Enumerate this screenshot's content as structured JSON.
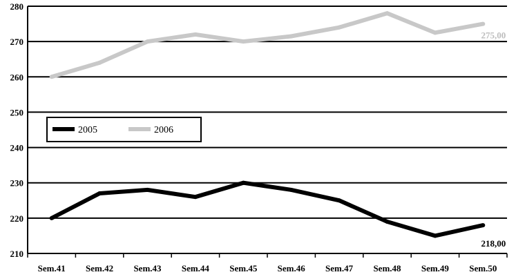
{
  "chart_data": {
    "type": "line",
    "title": "",
    "xlabel": "",
    "ylabel": "",
    "categories": [
      "Sem.41",
      "Sem.42",
      "Sem.43",
      "Sem.44",
      "Sem.45",
      "Sem.46",
      "Sem.47",
      "Sem.48",
      "Sem.49",
      "Sem.50"
    ],
    "ylim": [
      210,
      280
    ],
    "yticks": [
      210,
      220,
      230,
      240,
      250,
      260,
      270,
      280
    ],
    "grid": true,
    "legend_position": "middle-left",
    "series": [
      {
        "name": "2005",
        "values": [
          220,
          227,
          228,
          226,
          230,
          228,
          225,
          219,
          215,
          218
        ],
        "color": "#000000",
        "end_label": "218,00"
      },
      {
        "name": "2006",
        "values": [
          260,
          264,
          270,
          272,
          270,
          271.5,
          274,
          278,
          272.5,
          275
        ],
        "color": "#c8c8c8",
        "end_label": "275,00"
      }
    ]
  }
}
